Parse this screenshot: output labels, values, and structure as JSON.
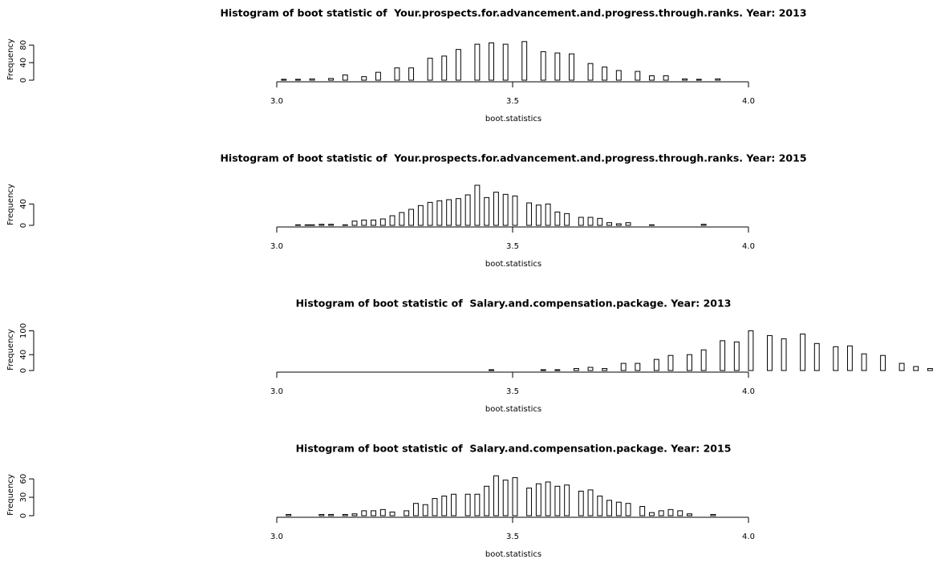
{
  "chart_data": [
    {
      "type": "histogram",
      "title": "Histogram of boot statistic of  Your.prospects.for.advancement.and.progress.through.ranks. Year: 2013",
      "x_label": "boot.statistics",
      "y_label": "Frequency",
      "bins": [
        3,
        3.01,
        3.02,
        3.03,
        3.04,
        3.05,
        3.06,
        3.07,
        3.08,
        3.09,
        3.1,
        3.11,
        3.12,
        3.13,
        3.14,
        3.15,
        3.16,
        3.17,
        3.18,
        3.19,
        3.2,
        3.21,
        3.22,
        3.23,
        3.24,
        3.25,
        3.26,
        3.27,
        3.28,
        3.29,
        3.3,
        3.31,
        3.32,
        3.33,
        3.34,
        3.35,
        3.36,
        3.37,
        3.38,
        3.39,
        3.4,
        3.41,
        3.42,
        3.43,
        3.44,
        3.45,
        3.46,
        3.47,
        3.48,
        3.49,
        3.5,
        3.51,
        3.52,
        3.53,
        3.54,
        3.55,
        3.56,
        3.57,
        3.58,
        3.59,
        3.6,
        3.61,
        3.62,
        3.63,
        3.64,
        3.65,
        3.66,
        3.67,
        3.68,
        3.69,
        3.7,
        3.71,
        3.72,
        3.73,
        3.74,
        3.75,
        3.76,
        3.77,
        3.78,
        3.79,
        3.8,
        3.81,
        3.82,
        3.83,
        3.84,
        3.85,
        3.86,
        3.87,
        3.88,
        3.89,
        3.9,
        3.91,
        3.92,
        3.93,
        3.94
      ],
      "values": [
        0,
        2,
        0,
        0,
        2,
        0,
        0,
        3,
        0,
        0,
        0,
        4,
        0,
        0,
        12,
        0,
        0,
        0,
        8,
        0,
        0,
        18,
        0,
        0,
        0,
        28,
        0,
        0,
        28,
        0,
        0,
        0,
        50,
        0,
        0,
        55,
        0,
        0,
        70,
        0,
        0,
        0,
        82,
        0,
        0,
        85,
        0,
        0,
        82,
        0,
        0,
        0,
        88,
        0,
        0,
        0,
        65,
        0,
        0,
        62,
        0,
        0,
        60,
        0,
        0,
        0,
        38,
        0,
        0,
        30,
        0,
        0,
        22,
        0,
        0,
        0,
        20,
        0,
        0,
        10,
        0,
        0,
        10,
        0,
        0,
        0,
        3,
        0,
        0,
        2,
        0,
        0,
        0,
        3
      ],
      "xlim": [
        3,
        4
      ],
      "xticks": [
        {
          "value": 3,
          "label": "3.0"
        },
        3.5,
        {
          "value": 4,
          "label": "4.0"
        }
      ],
      "ylim": [
        0,
        95
      ],
      "yticks": [
        0,
        40,
        80
      ],
      "color": "#ffffff"
    },
    {
      "type": "histogram",
      "title": "Histogram of boot statistic of  Your.prospects.for.advancement.and.progress.through.ranks. Year: 2015",
      "x_label": "boot.statistics",
      "y_label": "Frequency",
      "bins": [
        3,
        3.01,
        3.02,
        3.03,
        3.04,
        3.05,
        3.06,
        3.07,
        3.08,
        3.09,
        3.1,
        3.11,
        3.12,
        3.13,
        3.14,
        3.15,
        3.16,
        3.17,
        3.18,
        3.19,
        3.2,
        3.21,
        3.22,
        3.23,
        3.24,
        3.25,
        3.26,
        3.27,
        3.28,
        3.29,
        3.3,
        3.31,
        3.32,
        3.33,
        3.34,
        3.35,
        3.36,
        3.37,
        3.38,
        3.39,
        3.4,
        3.41,
        3.42,
        3.43,
        3.44,
        3.45,
        3.46,
        3.47,
        3.48,
        3.49,
        3.5,
        3.51,
        3.52,
        3.53,
        3.54,
        3.55,
        3.56,
        3.57,
        3.58,
        3.59,
        3.6,
        3.61,
        3.62,
        3.63,
        3.64,
        3.65,
        3.66,
        3.67,
        3.68,
        3.69,
        3.7,
        3.71,
        3.72,
        3.73,
        3.74,
        3.75,
        3.76,
        3.77,
        3.78,
        3.79,
        3.8,
        3.81,
        3.82,
        3.83,
        3.84,
        3.85,
        3.86,
        3.87,
        3.88,
        3.89,
        3.9,
        3.91
      ],
      "values": [
        0,
        0,
        0,
        0,
        1,
        0,
        1,
        1,
        0,
        2,
        0,
        2,
        0,
        0,
        1,
        0,
        8,
        0,
        10,
        0,
        10,
        0,
        12,
        0,
        18,
        0,
        24,
        0,
        30,
        0,
        37,
        0,
        43,
        0,
        46,
        0,
        48,
        0,
        50,
        0,
        57,
        0,
        75,
        0,
        52,
        0,
        62,
        0,
        58,
        0,
        55,
        0,
        0,
        42,
        0,
        38,
        0,
        40,
        0,
        25,
        0,
        22,
        0,
        0,
        15,
        0,
        15,
        0,
        13,
        0,
        5,
        0,
        3,
        0,
        5,
        0,
        0,
        0,
        0,
        1,
        0,
        0,
        0,
        0,
        0,
        0,
        0,
        0,
        0,
        0,
        2
      ],
      "xlim": [
        3,
        4
      ],
      "xticks": [
        {
          "value": 3,
          "label": "3.0"
        },
        3.5,
        {
          "value": 4,
          "label": "4.0"
        }
      ],
      "ylim": [
        0,
        78
      ],
      "yticks": [
        0,
        40
      ],
      "color": "#ffffff"
    },
    {
      "type": "histogram",
      "title": "Histogram of boot statistic of  Salary.and.compensation.package. Year: 2013",
      "x_label": "boot.statistics",
      "y_label": "Frequency",
      "bins": [
        3.45,
        3.46,
        3.47,
        3.48,
        3.49,
        3.5,
        3.51,
        3.52,
        3.53,
        3.54,
        3.55,
        3.56,
        3.57,
        3.58,
        3.59,
        3.6,
        3.61,
        3.62,
        3.63,
        3.64,
        3.65,
        3.66,
        3.67,
        3.68,
        3.69,
        3.7,
        3.71,
        3.72,
        3.73,
        3.74,
        3.75,
        3.76,
        3.77,
        3.78,
        3.79,
        3.8,
        3.81,
        3.82,
        3.83,
        3.84,
        3.85,
        3.86,
        3.87,
        3.88,
        3.89,
        3.9,
        3.91,
        3.92,
        3.93,
        3.94,
        3.95,
        3.96,
        3.97,
        3.98,
        3.99,
        4,
        4.01,
        4.02,
        4.03,
        4.04,
        4.05,
        4.06,
        4.07,
        4.08,
        4.09,
        4.1,
        4.11,
        4.12,
        4.13,
        4.14,
        4.15,
        4.16,
        4.17,
        4.18,
        4.19,
        4.2,
        4.21,
        4.22,
        4.23,
        4.24,
        4.25,
        4.26,
        4.27,
        4.28,
        4.29,
        4.3,
        4.31,
        4.32,
        4.33,
        4.34,
        4.35,
        4.36,
        4.37,
        4.38,
        4.39
      ],
      "values": [
        2,
        0,
        0,
        0,
        0,
        0,
        0,
        0,
        0,
        0,
        0,
        2,
        0,
        0,
        2,
        0,
        0,
        0,
        5,
        0,
        0,
        8,
        0,
        0,
        5,
        0,
        0,
        0,
        18,
        0,
        0,
        18,
        0,
        0,
        0,
        28,
        0,
        0,
        38,
        0,
        0,
        0,
        40,
        0,
        0,
        52,
        0,
        0,
        0,
        75,
        0,
        0,
        72,
        0,
        0,
        100,
        0,
        0,
        0,
        88,
        0,
        0,
        80,
        0,
        0,
        0,
        92,
        0,
        0,
        68,
        0,
        0,
        0,
        60,
        0,
        0,
        62,
        0,
        0,
        42,
        0,
        0,
        0,
        38,
        0,
        0,
        0,
        18,
        0,
        0,
        10,
        0,
        0,
        5
      ],
      "xlim": [
        3,
        4
      ],
      "xticks": [
        {
          "value": 3,
          "label": "3.0"
        },
        3.5,
        {
          "value": 4,
          "label": "4.0"
        }
      ],
      "ylim": [
        0,
        105
      ],
      "yticks": [
        0,
        40,
        100
      ],
      "color": "#ffffff"
    },
    {
      "type": "histogram",
      "title": "Histogram of boot statistic of  Salary.and.compensation.package. Year: 2015",
      "x_label": "boot.statistics",
      "y_label": "Frequency",
      "bins": [
        3,
        3.01,
        3.02,
        3.03,
        3.04,
        3.05,
        3.06,
        3.07,
        3.08,
        3.09,
        3.1,
        3.11,
        3.12,
        3.13,
        3.14,
        3.15,
        3.16,
        3.17,
        3.18,
        3.19,
        3.2,
        3.21,
        3.22,
        3.23,
        3.24,
        3.25,
        3.26,
        3.27,
        3.28,
        3.29,
        3.3,
        3.31,
        3.32,
        3.33,
        3.34,
        3.35,
        3.36,
        3.37,
        3.38,
        3.39,
        3.4,
        3.41,
        3.42,
        3.43,
        3.44,
        3.45,
        3.46,
        3.47,
        3.48,
        3.49,
        3.5,
        3.51,
        3.52,
        3.53,
        3.54,
        3.55,
        3.56,
        3.57,
        3.58,
        3.59,
        3.6,
        3.61,
        3.62,
        3.63,
        3.64,
        3.65,
        3.66,
        3.67,
        3.68,
        3.69,
        3.7,
        3.71,
        3.72,
        3.73,
        3.74,
        3.75,
        3.76,
        3.77,
        3.78,
        3.79,
        3.8,
        3.81,
        3.82,
        3.83,
        3.84,
        3.85,
        3.86,
        3.87,
        3.88,
        3.89,
        3.9,
        3.91,
        3.92,
        3.93
      ],
      "values": [
        0,
        0,
        2,
        0,
        0,
        0,
        0,
        0,
        0,
        2,
        0,
        2,
        0,
        0,
        2,
        0,
        3,
        0,
        8,
        0,
        8,
        0,
        10,
        0,
        6,
        0,
        0,
        8,
        0,
        20,
        0,
        18,
        0,
        28,
        0,
        32,
        0,
        35,
        0,
        0,
        35,
        0,
        35,
        0,
        48,
        0,
        65,
        0,
        58,
        0,
        62,
        0,
        0,
        45,
        0,
        52,
        0,
        55,
        0,
        48,
        0,
        50,
        0,
        0,
        40,
        0,
        42,
        0,
        32,
        0,
        25,
        0,
        22,
        0,
        20,
        0,
        0,
        15,
        0,
        5,
        0,
        8,
        0,
        10,
        0,
        8,
        0,
        3,
        0,
        0,
        0,
        0,
        2
      ],
      "xlim": [
        3,
        4
      ],
      "xticks": [
        {
          "value": 3,
          "label": "3.0"
        },
        3.5,
        {
          "value": 4,
          "label": "4.0"
        }
      ],
      "ylim": [
        0,
        68
      ],
      "yticks": [
        0,
        30,
        60
      ],
      "color": "#ffffff"
    }
  ]
}
